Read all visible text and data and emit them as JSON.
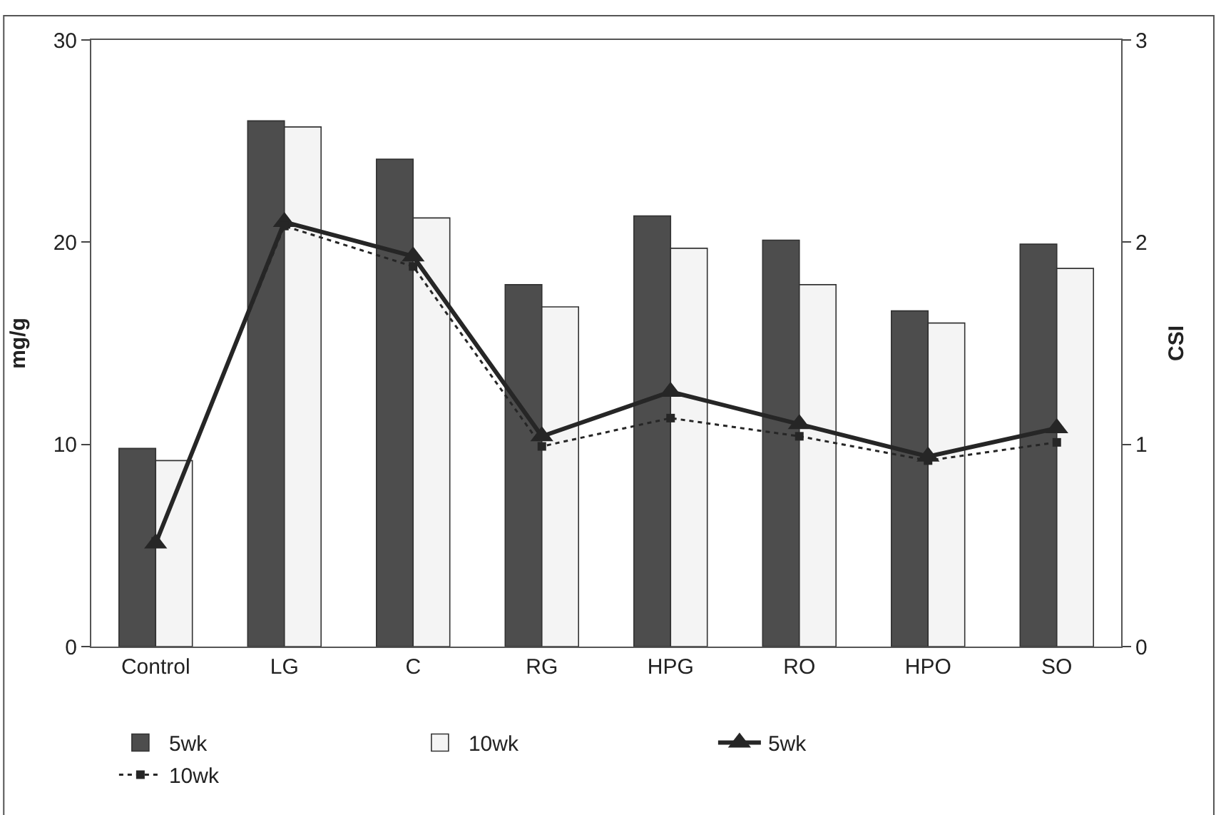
{
  "chart_data": {
    "type": "bar",
    "categories": [
      "Control",
      "LG",
      "C",
      "RG",
      "HPG",
      "RO",
      "HPO",
      "SO"
    ],
    "ylabel": "mg/g",
    "y2label": "CSI",
    "ylim": [
      0,
      30
    ],
    "yticks": [
      0,
      10,
      20,
      30
    ],
    "y2lim": [
      0,
      3
    ],
    "y2ticks": [
      0,
      1,
      2,
      3
    ],
    "legend": "bottom",
    "series": [
      {
        "name": "5wk",
        "color": "#4d4d4d",
        "values": [
          9.8,
          26.0,
          24.1,
          17.9,
          21.3,
          20.1,
          16.6,
          19.9
        ]
      },
      {
        "name": "10wk",
        "color": "#f4f4f4",
        "values": [
          9.2,
          25.7,
          21.2,
          16.8,
          19.7,
          17.9,
          16.0,
          18.7
        ]
      },
      {
        "name": "5wk",
        "type": "line",
        "axis": "y2",
        "color": "#262626",
        "marker": "triangle",
        "line_style": "solid",
        "values": [
          0.51,
          2.1,
          1.93,
          1.04,
          1.26,
          1.1,
          0.94,
          1.08
        ]
      },
      {
        "name": "10wk",
        "type": "line",
        "axis": "y2",
        "color": "#262626",
        "marker": "square",
        "line_style": "dotted",
        "values": [
          0.52,
          2.08,
          1.88,
          0.99,
          1.13,
          1.04,
          0.92,
          1.01
        ]
      }
    ]
  }
}
